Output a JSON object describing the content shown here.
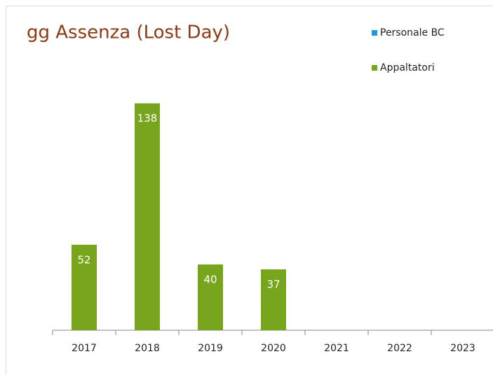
{
  "chart_data": {
    "type": "bar",
    "title": "gg Assenza (Lost Day)",
    "categories": [
      "2017",
      "2018",
      "2019",
      "2020",
      "2021",
      "2022",
      "2023"
    ],
    "series": [
      {
        "name": "Personale BC",
        "color": "#1e9bd7",
        "values": [
          null,
          null,
          null,
          null,
          null,
          null,
          null
        ]
      },
      {
        "name": "Appaltatori",
        "color": "#77a51c",
        "values": [
          52,
          138,
          40,
          37,
          null,
          null,
          null
        ]
      }
    ],
    "ylim": [
      0,
      140
    ],
    "legend": "top-right"
  }
}
